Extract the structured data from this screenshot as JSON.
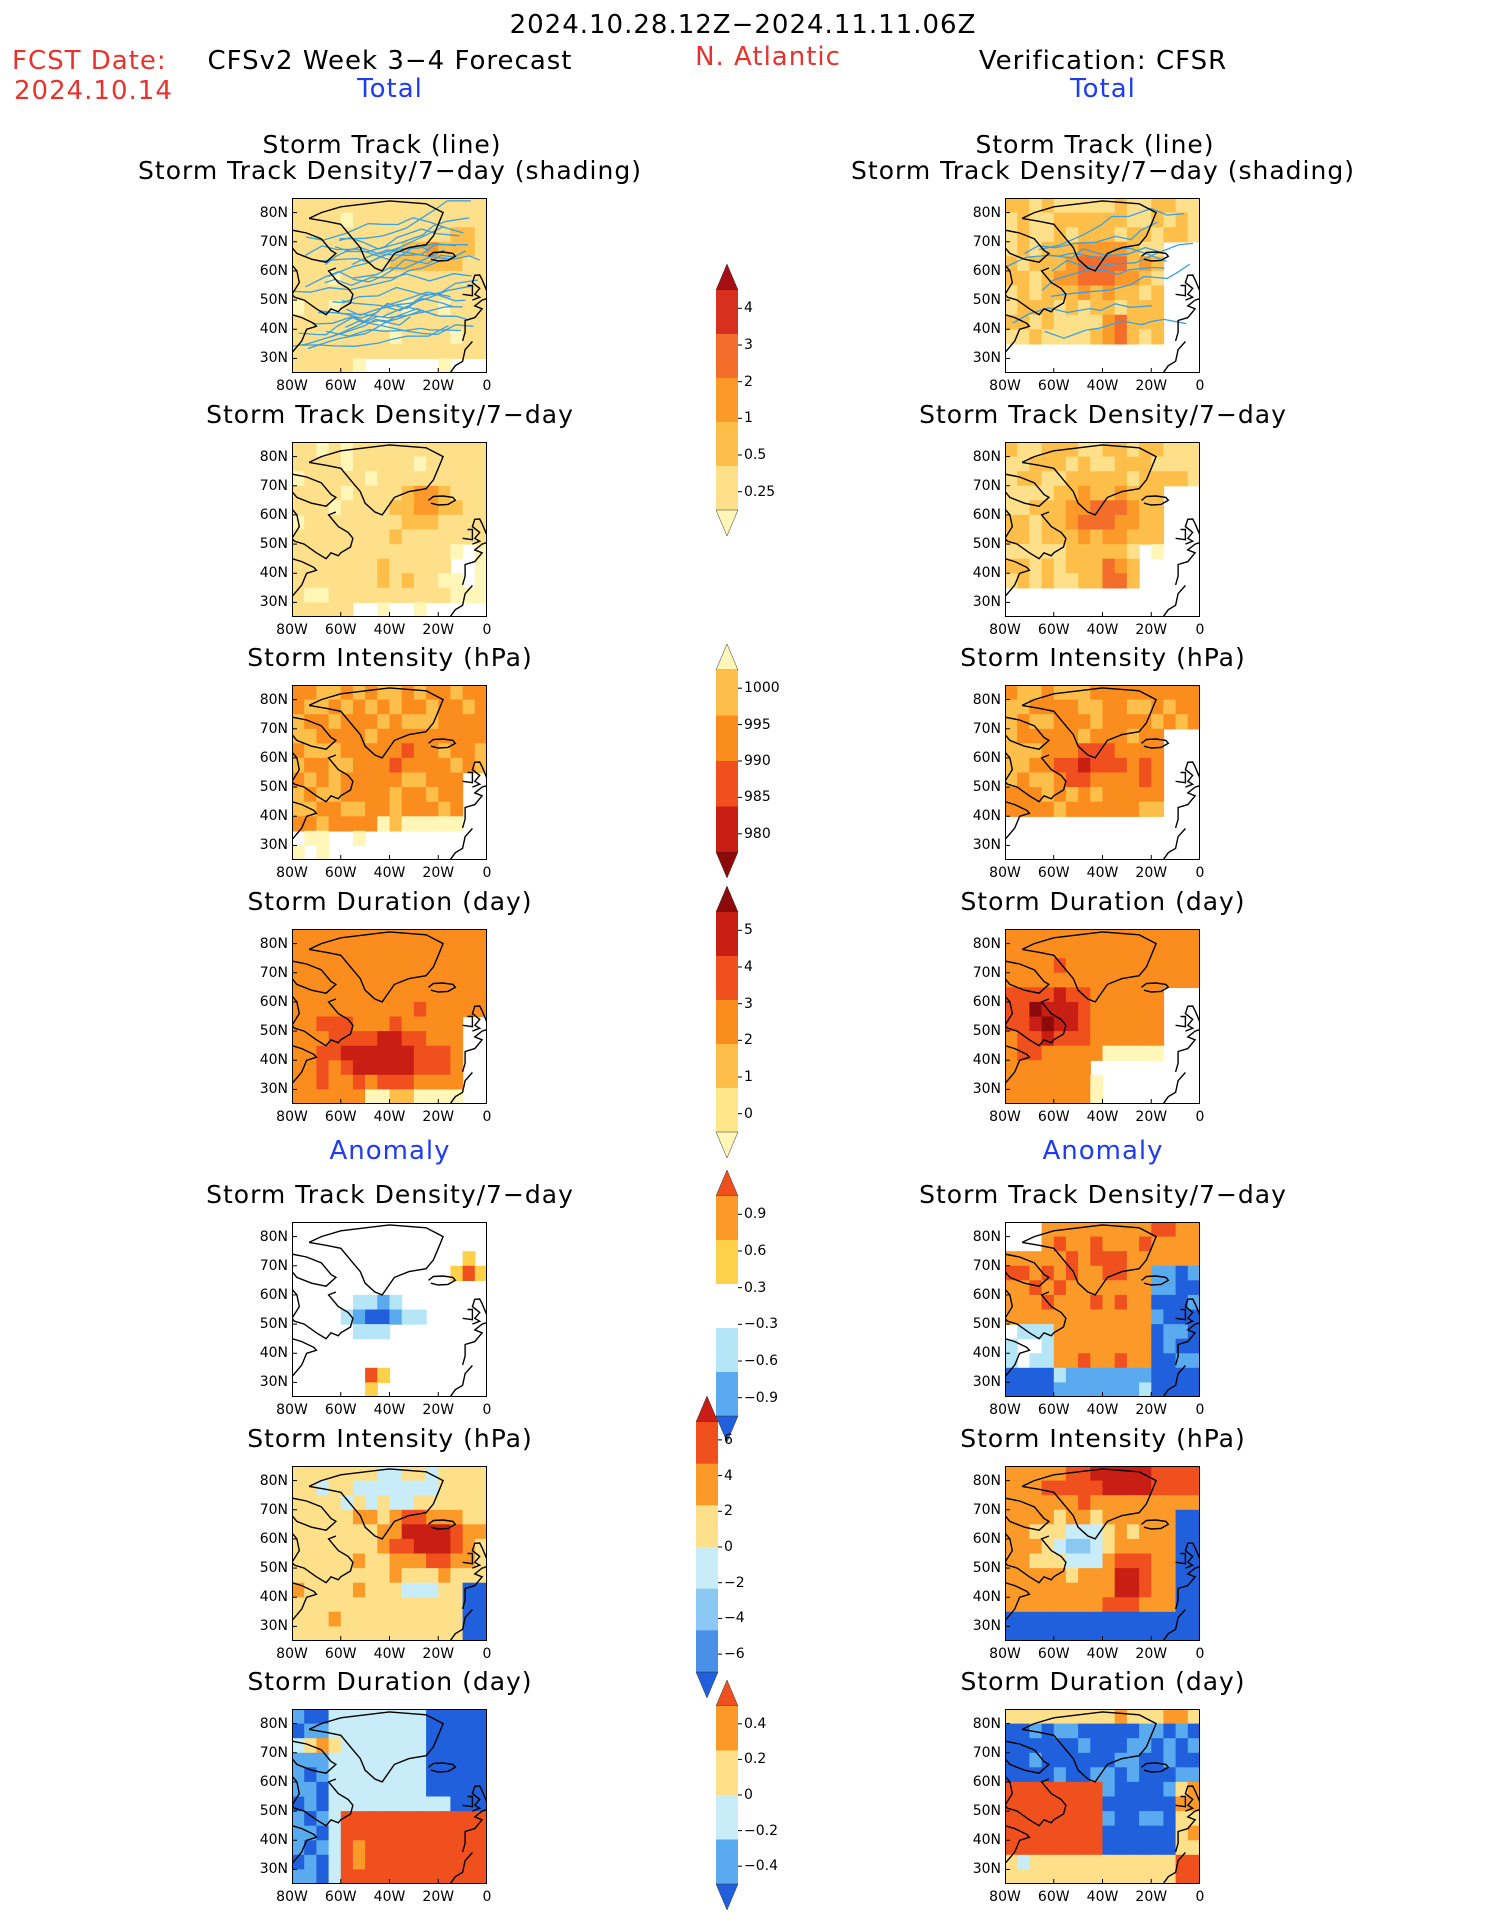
{
  "header": {
    "period": "2024.10.28.12Z−2024.11.11.06Z",
    "fcst_label": "FCST Date:",
    "fcst_date": "2024.10.14",
    "model": "CFSv2 Week 3−4 Forecast",
    "region": "N. Atlantic",
    "verification": "Verification: CFSR",
    "left_section_total": "Total",
    "right_section_total": "Total",
    "left_section_anomaly": "Anomaly",
    "right_section_anomaly": "Anomaly"
  },
  "panel_titles": {
    "track_line": "Storm Track (line)",
    "track_shading": "Storm Track Density/7−day (shading)",
    "density": "Storm Track Density/7−day",
    "intensity": "Storm Intensity (hPa)",
    "duration": "Storm Duration (day)"
  },
  "axes": {
    "lat_labels": [
      "80N",
      "70N",
      "60N",
      "50N",
      "40N",
      "30N"
    ],
    "lon_labels": [
      "80W",
      "60W",
      "40W",
      "20W",
      "0"
    ]
  },
  "colorbars": {
    "density_total": {
      "labels": [
        "4",
        "3",
        "2",
        "1",
        "0.5",
        "0.25"
      ],
      "colors": [
        "#a50f15",
        "#d7301f",
        "#f46d2a",
        "#fb9a29",
        "#fdbf4a",
        "#fee08b",
        "#fff6b8"
      ]
    },
    "intensity_total": {
      "labels": [
        "1000",
        "995",
        "990",
        "985",
        "980"
      ],
      "colors": [
        "#fff6b8",
        "#fdbf4a",
        "#fb8c1e",
        "#f0501e",
        "#c81e14",
        "#8c0a0a"
      ]
    },
    "duration_total": {
      "labels": [
        "5",
        "4",
        "3",
        "2",
        "1",
        "0"
      ],
      "colors": [
        "#8c0a0a",
        "#c81e14",
        "#f0501e",
        "#fb8c1e",
        "#fdbf4a",
        "#fee68a",
        "#fff6b8"
      ]
    },
    "density_anom": {
      "labels": [
        "0.9",
        "0.6",
        "0.3",
        "−0.3",
        "−0.6",
        "−0.9"
      ],
      "colors": [
        "#f0501e",
        "#fb9a29",
        "#fdd14a",
        "#ffffff",
        "#b4e6f8",
        "#5aaaf0",
        "#2060dc"
      ]
    },
    "intensity_anom": {
      "labels": [
        "6",
        "4",
        "2",
        "0",
        "−2",
        "−4",
        "−6"
      ],
      "colors": [
        "#c81e14",
        "#f0501e",
        "#fb9a29",
        "#fee08b",
        "#c8ecf8",
        "#8cc8f4",
        "#4b90e8",
        "#2060dc"
      ]
    },
    "duration_anom": {
      "labels": [
        "0.4",
        "0.2",
        "0",
        "−0.2",
        "−0.4"
      ],
      "colors": [
        "#f0501e",
        "#fb9a29",
        "#fee08b",
        "#c8ecf8",
        "#5aaaf0",
        "#2060dc"
      ]
    }
  },
  "map_colors": {
    "land_outline": "#000000",
    "track_line": "#3aa0e0"
  }
}
